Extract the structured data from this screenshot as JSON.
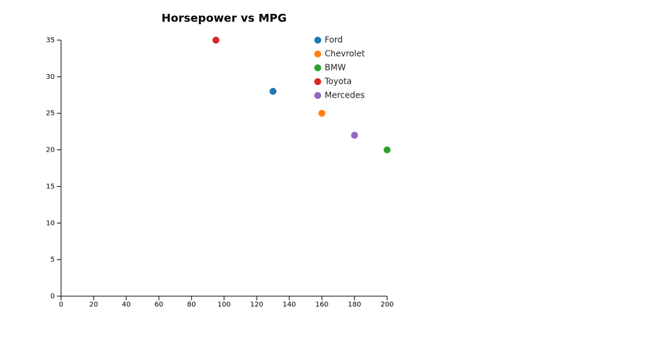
{
  "chart_data": {
    "type": "scatter",
    "title": "Horsepower vs MPG",
    "series": [
      {
        "name": "Ford",
        "color": "#1f77b4",
        "x": [
          130
        ],
        "values": [
          28
        ]
      },
      {
        "name": "Chevrolet",
        "color": "#ff7f0e",
        "x": [
          160
        ],
        "values": [
          25
        ]
      },
      {
        "name": "BMW",
        "color": "#2ca02c",
        "x": [
          200
        ],
        "values": [
          20
        ]
      },
      {
        "name": "Toyota",
        "color": "#d62728",
        "x": [
          95
        ],
        "values": [
          35
        ]
      },
      {
        "name": "Mercedes",
        "color": "#9467bd",
        "x": [
          180
        ],
        "values": [
          22
        ]
      }
    ],
    "xlim": [
      0,
      200
    ],
    "xticks": [
      0,
      20,
      40,
      60,
      80,
      100,
      120,
      140,
      160,
      180,
      200
    ],
    "ylim": [
      0,
      35
    ],
    "yticks": [
      0,
      5,
      10,
      15,
      20,
      25,
      30,
      35
    ],
    "grid": false,
    "legend": "top-right"
  }
}
